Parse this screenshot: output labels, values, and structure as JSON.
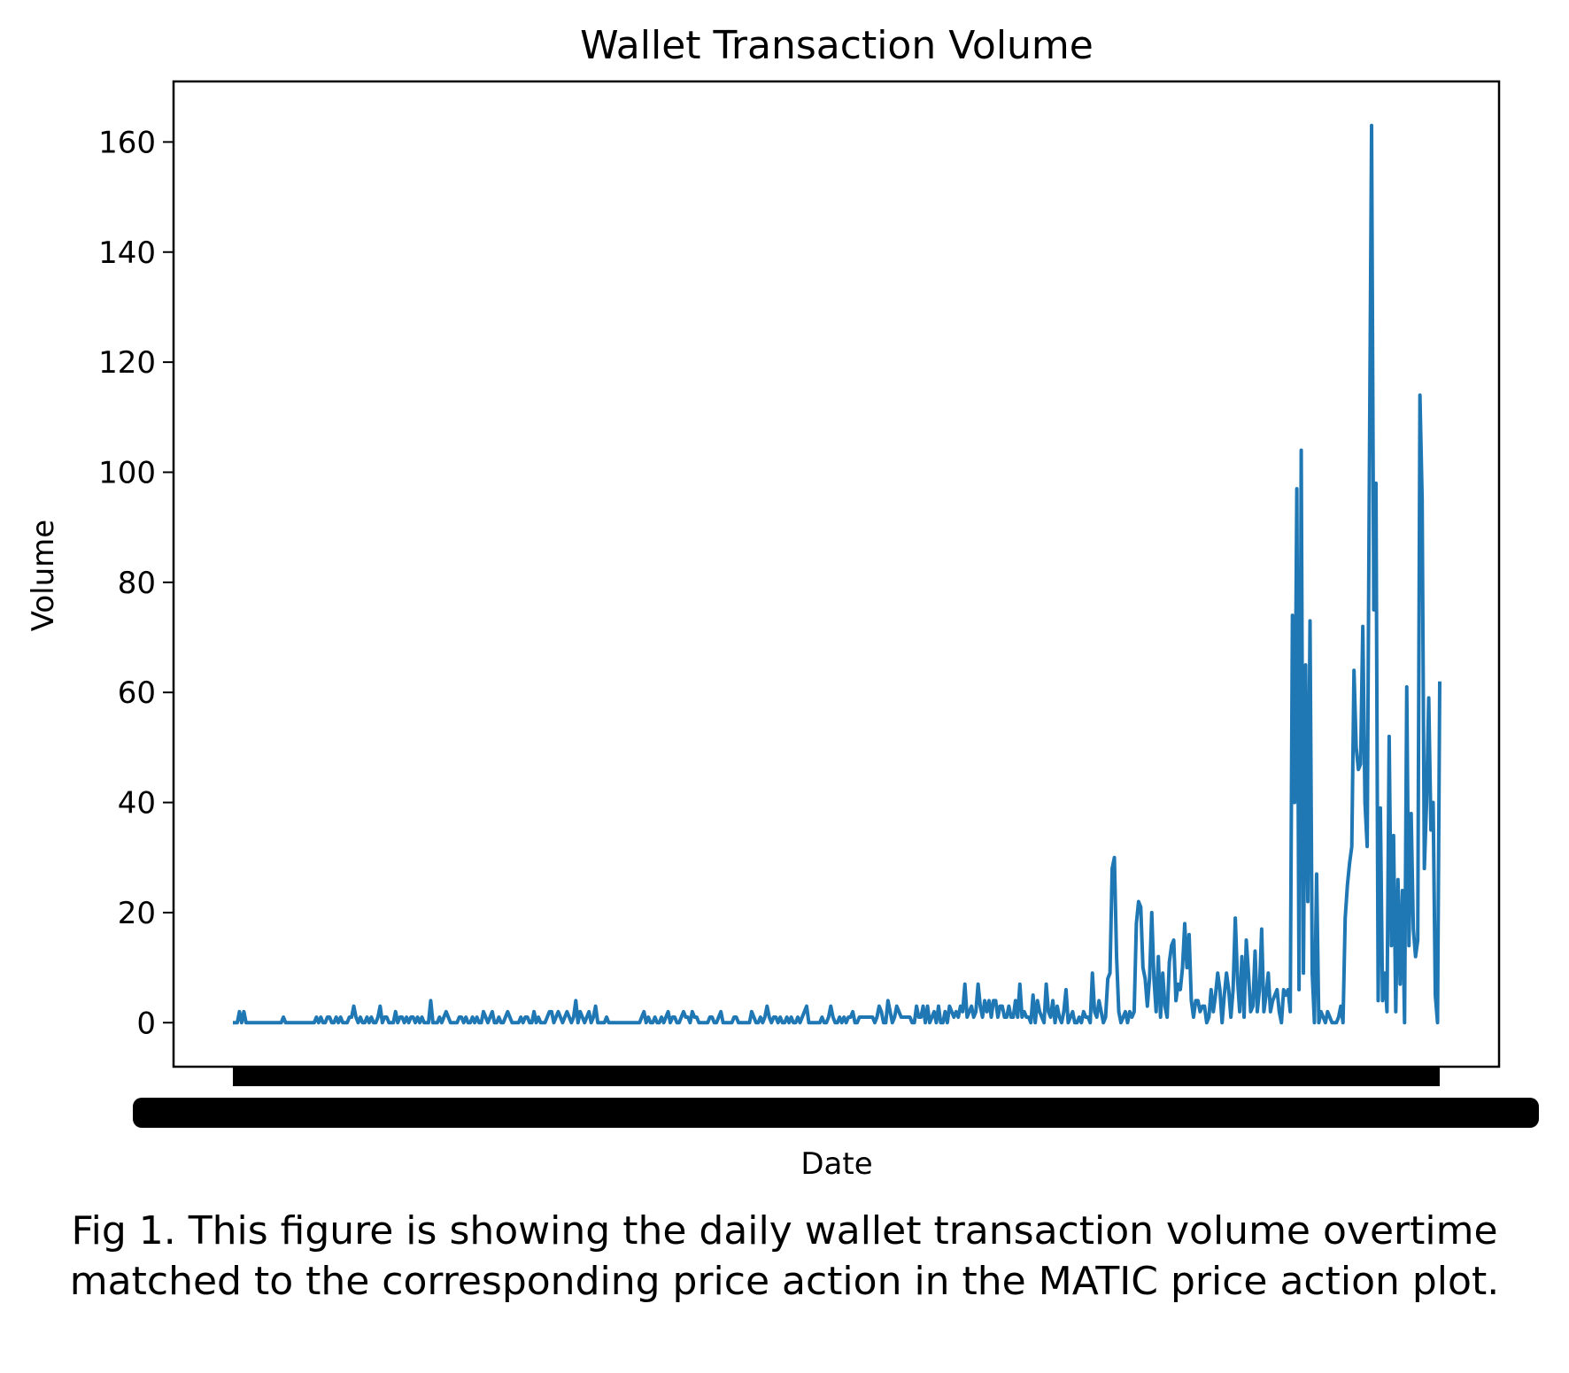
{
  "chart_data": {
    "type": "line",
    "title": "Wallet Transaction Volume",
    "xlabel": "Date",
    "ylabel": "Volume",
    "ylim": [
      -8,
      171
    ],
    "y_ticks": [
      "0",
      "20",
      "40",
      "60",
      "80",
      "100",
      "120",
      "140",
      "160"
    ],
    "x_tick_labels": "overlapping, unreadable",
    "grid": false,
    "series": [
      {
        "color": "#1f77b4",
        "values": [
          0,
          0,
          0,
          2,
          0,
          2,
          0,
          0,
          0,
          0,
          0,
          0,
          0,
          0,
          0,
          0,
          0,
          0,
          0,
          0,
          0,
          0,
          0,
          1,
          0,
          0,
          0,
          0,
          0,
          0,
          0,
          0,
          0,
          0,
          0,
          0,
          0,
          0,
          1,
          0,
          1,
          0,
          0,
          1,
          1,
          0,
          0,
          1,
          0,
          1,
          0,
          0,
          0,
          1,
          1,
          3,
          1,
          0,
          1,
          0,
          0,
          1,
          0,
          1,
          0,
          0,
          1,
          3,
          0,
          1,
          1,
          0,
          0,
          0,
          2,
          0,
          1,
          1,
          0,
          1,
          0,
          1,
          1,
          0,
          1,
          0,
          1,
          0,
          0,
          0,
          4,
          0,
          0,
          0,
          1,
          0,
          1,
          2,
          1,
          0,
          0,
          0,
          0,
          1,
          1,
          0,
          1,
          0,
          0,
          1,
          0,
          1,
          0,
          0,
          2,
          1,
          0,
          1,
          2,
          0,
          0,
          1,
          0,
          0,
          1,
          2,
          1,
          0,
          0,
          0,
          0,
          1,
          0,
          1,
          1,
          0,
          0,
          2,
          0,
          1,
          0,
          0,
          0,
          1,
          2,
          2,
          0,
          1,
          2,
          1,
          0,
          1,
          2,
          1,
          0,
          1,
          4,
          0,
          2,
          1,
          0,
          1,
          2,
          0,
          1,
          3,
          0,
          0,
          0,
          0,
          1,
          0,
          0,
          0,
          0,
          0,
          0,
          0,
          0,
          0,
          0,
          0,
          0,
          0,
          0,
          0,
          1,
          2,
          0,
          1,
          0,
          0,
          1,
          0,
          0,
          1,
          0,
          1,
          2,
          0,
          1,
          1,
          0,
          0,
          1,
          2,
          1,
          1,
          0,
          2,
          1,
          1,
          0,
          0,
          0,
          0,
          0,
          1,
          1,
          0,
          0,
          1,
          2,
          0,
          0,
          0,
          0,
          0,
          1,
          1,
          0,
          0,
          0,
          0,
          0,
          0,
          2,
          1,
          0,
          0,
          1,
          0,
          1,
          3,
          1,
          0,
          1,
          1,
          0,
          1,
          0,
          0,
          1,
          0,
          1,
          0,
          0,
          1,
          0,
          1,
          2,
          3,
          0,
          0,
          0,
          0,
          0,
          0,
          1,
          0,
          0,
          1,
          3,
          1,
          0,
          0,
          1,
          0,
          1,
          0,
          1,
          1,
          2,
          0,
          0,
          1,
          1,
          1,
          1,
          1,
          1,
          1,
          0,
          1,
          3,
          2,
          0,
          0,
          4,
          2,
          0,
          1,
          3,
          2,
          1,
          1,
          1,
          1,
          1,
          0,
          0,
          3,
          1,
          1,
          3,
          0,
          3,
          0,
          1,
          2,
          0,
          3,
          0,
          0,
          2,
          0,
          3,
          2,
          1,
          2,
          1,
          3,
          2,
          7,
          1,
          2,
          3,
          1,
          2,
          7,
          3,
          1,
          4,
          2,
          4,
          1,
          4,
          4,
          1,
          3,
          3,
          1,
          1,
          3,
          1,
          1,
          4,
          1,
          7,
          1,
          2,
          1,
          1,
          0,
          5,
          0,
          4,
          2,
          1,
          0,
          7,
          2,
          1,
          4,
          0,
          3,
          1,
          0,
          2,
          6,
          0,
          1,
          2,
          0,
          0,
          1,
          0,
          2,
          1,
          1,
          0,
          9,
          2,
          1,
          4,
          2,
          0,
          1,
          8,
          9,
          28,
          30,
          12,
          2,
          0,
          1,
          2,
          0,
          2,
          1,
          2,
          18,
          22,
          21,
          10,
          8,
          3,
          8,
          20,
          8,
          2,
          12,
          1,
          9,
          3,
          1,
          11,
          14,
          15,
          4,
          7,
          6,
          10,
          18,
          10,
          16,
          4,
          1,
          4,
          4,
          2,
          3,
          3,
          0,
          1,
          6,
          2,
          5,
          9,
          6,
          0,
          5,
          9,
          6,
          1,
          6,
          19,
          8,
          2,
          12,
          1,
          15,
          9,
          2,
          3,
          13,
          2,
          6,
          17,
          2,
          5,
          9,
          2,
          4,
          5,
          6,
          2,
          0,
          6,
          5,
          6,
          2,
          74,
          40,
          97,
          6,
          104,
          9,
          65,
          22,
          73,
          9,
          0,
          27,
          0,
          2,
          1,
          0,
          2,
          1,
          0,
          0,
          0,
          1,
          3,
          0,
          19,
          25,
          29,
          32,
          64,
          50,
          46,
          47,
          72,
          40,
          32,
          100,
          163,
          75,
          98,
          4,
          39,
          4,
          9,
          2,
          52,
          14,
          34,
          2,
          26,
          7,
          24,
          0,
          61,
          14,
          38,
          17,
          12,
          15,
          114,
          95,
          28,
          40,
          59,
          35,
          40,
          5,
          0,
          62
        ]
      }
    ]
  },
  "caption": "Fig 1. This figure is showing the daily wallet transaction volume overtime matched to the corresponding price action in the MATIC price action plot."
}
